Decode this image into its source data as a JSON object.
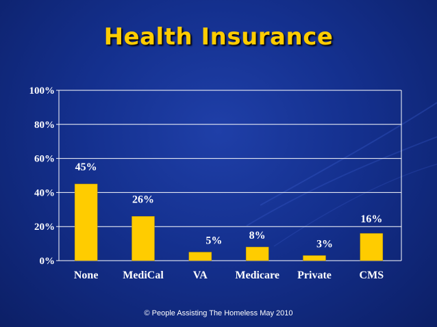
{
  "slide": {
    "title": "Health Insurance",
    "footer": "© People Assisting The Homeless May 2010"
  },
  "colors": {
    "bar": "#ffcc00",
    "text": "#ffffff",
    "title": "#ffcc00"
  },
  "chart_data": {
    "type": "bar",
    "title": "Health Insurance",
    "categories": [
      "None",
      "MediCal",
      "VA",
      "Medicare",
      "Private",
      "CMS"
    ],
    "values": [
      45,
      26,
      5,
      8,
      3,
      16
    ],
    "data_labels": [
      "45%",
      "26%",
      "5%",
      "8%",
      "3%",
      "16%"
    ],
    "yticks": [
      0,
      20,
      40,
      60,
      80,
      100
    ],
    "ytick_labels": [
      "0%",
      "20%",
      "40%",
      "60%",
      "80%",
      "100%"
    ],
    "ylim": [
      0,
      100
    ],
    "xlabel": "",
    "ylabel": "",
    "grid": true,
    "legend": "none"
  }
}
